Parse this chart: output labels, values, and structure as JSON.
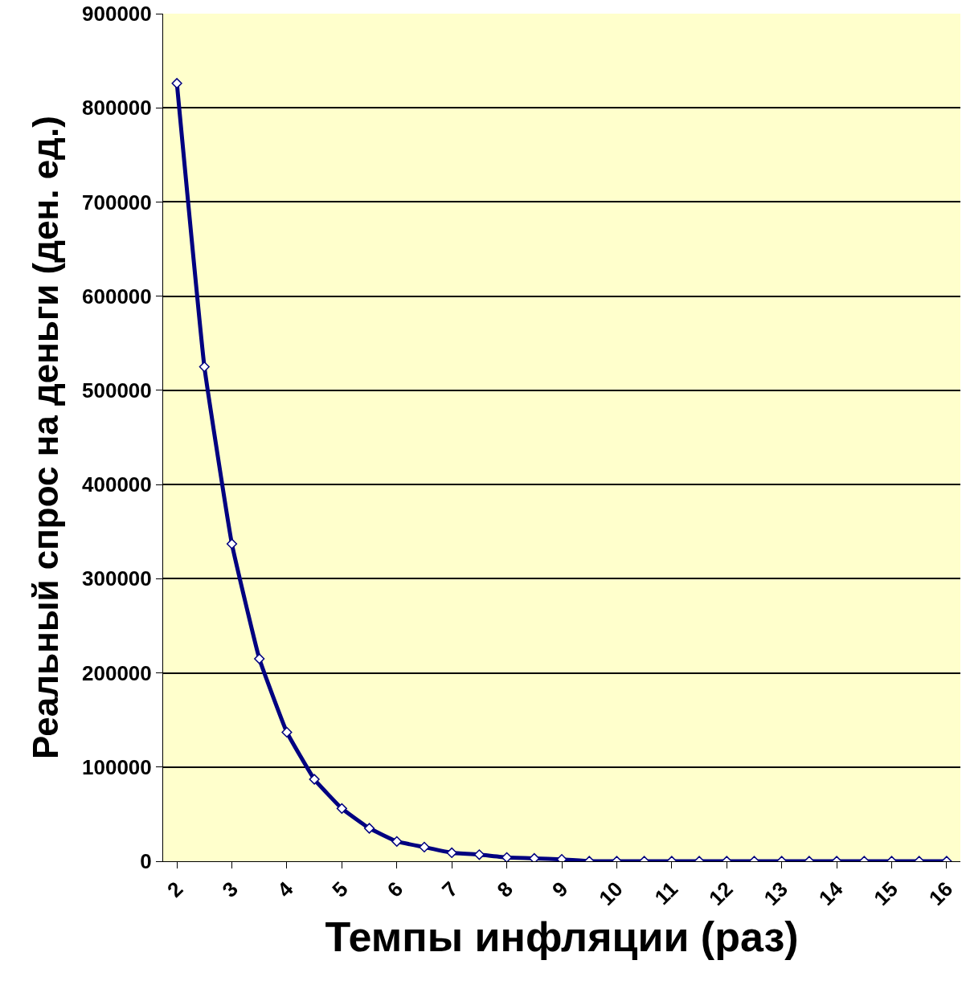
{
  "chart_data": {
    "type": "line",
    "xlabel": "Темпы инфляции (раз)",
    "ylabel": "Реальный спрос на деньги (ден. ед.)",
    "categories": [
      "2",
      null,
      "3",
      null,
      "4",
      null,
      "5",
      null,
      "6",
      null,
      "7",
      null,
      "8",
      null,
      "9",
      null,
      "10",
      null,
      "11",
      null,
      "12",
      null,
      "13",
      null,
      "14",
      null,
      "15",
      null,
      "16"
    ],
    "series": [
      {
        "color": "#000080",
        "values": [
          826000,
          525000,
          337000,
          215000,
          137000,
          87000,
          56000,
          35000,
          21000,
          15000,
          9000,
          7000,
          4000,
          3000,
          2000,
          0,
          0,
          0,
          0,
          0,
          0,
          0,
          0,
          0,
          0,
          0,
          0,
          0,
          0
        ]
      }
    ],
    "ylim": [
      0,
      900000
    ],
    "yticks": [
      0,
      100000,
      200000,
      300000,
      400000,
      500000,
      600000,
      700000,
      800000,
      900000
    ],
    "grid": "y",
    "legend": false,
    "marker": "diamond",
    "line_style": "solid"
  }
}
